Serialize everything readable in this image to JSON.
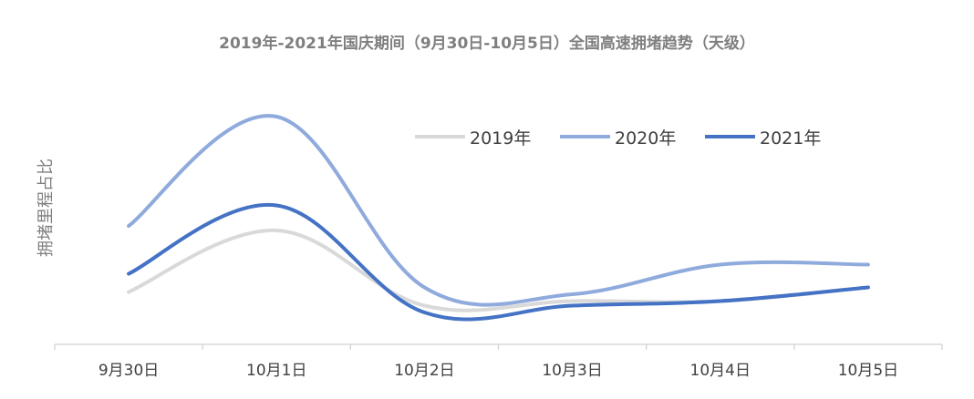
{
  "chart_data": {
    "type": "line",
    "title": "2019年-2021年国庆期间（9月30日-10月5日）全国高速拥堵趋势（天级）",
    "xlabel": "",
    "ylabel": "拥堵里程占比",
    "categories": [
      "9月30日",
      "10月1日",
      "10月2日",
      "10月3日",
      "10月4日",
      "10月5日"
    ],
    "ylim": [
      0,
      1
    ],
    "y_ticks_shown": false,
    "grid": false,
    "smooth": true,
    "legend_position": "top-right",
    "series": [
      {
        "name": "2019年",
        "color": "#d9d9d9",
        "values": [
          0.23,
          0.5,
          0.17,
          0.19,
          0.19,
          0.25
        ]
      },
      {
        "name": "2020年",
        "color": "#8faadc",
        "values": [
          0.52,
          1.0,
          0.25,
          0.22,
          0.35,
          0.35
        ]
      },
      {
        "name": "2021年",
        "color": "#4472c4",
        "values": [
          0.31,
          0.61,
          0.14,
          0.17,
          0.19,
          0.25
        ]
      }
    ]
  }
}
